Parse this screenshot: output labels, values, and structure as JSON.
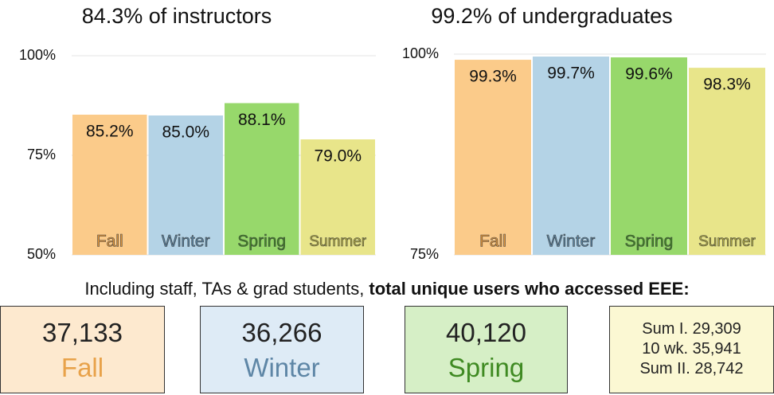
{
  "chart_data": [
    {
      "type": "bar",
      "title": "84.3% of instructors",
      "categories": [
        "Fall",
        "Winter",
        "Spring",
        "Summer"
      ],
      "values": [
        85.2,
        85.0,
        88.1,
        79.0
      ],
      "value_labels": [
        "85.2%",
        "85.0%",
        "88.1%",
        "79.0%"
      ],
      "colors": [
        "#fbcb8a",
        "#b4d3e6",
        "#97d86b",
        "#e8e58a"
      ],
      "label_colors": [
        "#e0953a",
        "#56819f",
        "#3d8a1f",
        "#b3ad3e"
      ],
      "ylim": [
        50,
        100
      ],
      "yticks": [
        {
          "value": 50,
          "label": "50%"
        },
        {
          "value": 75,
          "label": "75%"
        },
        {
          "value": 100,
          "label": "100%"
        }
      ],
      "grid": true
    },
    {
      "type": "bar",
      "title": "99.2% of undergraduates",
      "categories": [
        "Fall",
        "Winter",
        "Spring",
        "Summer"
      ],
      "values": [
        99.3,
        99.7,
        99.6,
        98.3
      ],
      "value_labels": [
        "99.3%",
        "99.7%",
        "99.6%",
        "98.3%"
      ],
      "colors": [
        "#fbcb8a",
        "#b4d3e6",
        "#97d86b",
        "#e8e58a"
      ],
      "label_colors": [
        "#e0953a",
        "#56819f",
        "#3d8a1f",
        "#b3ad3e"
      ],
      "ylim": [
        75,
        100
      ],
      "yticks": [
        {
          "value": 75,
          "label": "75%"
        },
        {
          "value": 100,
          "label": "100%"
        }
      ],
      "grid": true
    }
  ],
  "summary": {
    "lead": "Including staff, TAs & grad students, ",
    "lead_bold": "total unique users who accessed EEE:",
    "boxes": [
      {
        "count": "37,133",
        "term": "Fall"
      },
      {
        "count": "36,266",
        "term": "Winter"
      },
      {
        "count": "40,120",
        "term": "Spring"
      },
      {
        "lines": [
          "Sum I. 29,309",
          "10 wk. 35,941",
          "Sum II. 28,742"
        ]
      }
    ]
  }
}
